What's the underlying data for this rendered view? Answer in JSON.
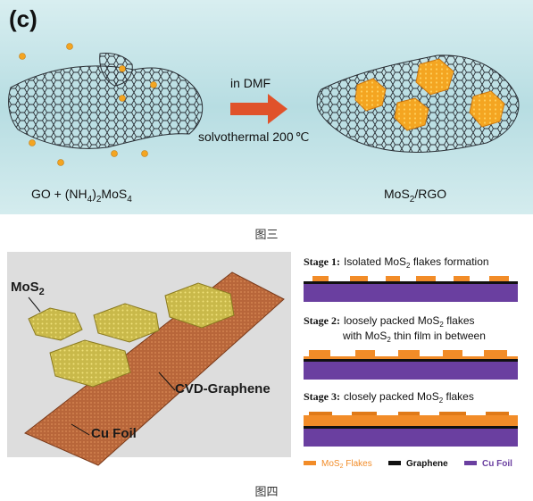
{
  "figure3": {
    "panel_label": "(c)",
    "arrow_top": "in DMF",
    "arrow_bottom": "solvothermal 200",
    "temperature_unit": "℃",
    "reactant_label": "GO + (NH",
    "reactant_sub1": "4",
    "reactant_mid": ")",
    "reactant_sub2": "2",
    "reactant_tail": "MoS",
    "reactant_sub3": "4",
    "product_label": "MoS",
    "product_sub": "2",
    "product_tail": "/RGO",
    "caption": "图三"
  },
  "figure4": {
    "left_labels": {
      "mos2": "MoS",
      "mos2_sub": "2",
      "graphene": "CVD-Graphene",
      "cu": "Cu Foil"
    },
    "stages": [
      {
        "title": "Stage 1:",
        "desc": "Isolated MoS",
        "desc_sub": "2",
        "desc_tail": " flakes formation",
        "desc2": ""
      },
      {
        "title": "Stage 2:",
        "desc": "loosely packed MoS",
        "desc_sub": "2",
        "desc_tail": " flakes",
        "desc2": "with MoS",
        "desc2_sub": "2",
        "desc2_tail": " thin film in between"
      },
      {
        "title": "Stage 3:",
        "desc": "closely packed MoS",
        "desc_sub": "2",
        "desc_tail": " flakes",
        "desc2": ""
      }
    ],
    "legend": [
      {
        "label": "MoS",
        "sub": "2",
        "tail": " Flakes",
        "color": "#f28c28"
      },
      {
        "label": "Graphene",
        "sub": "",
        "tail": "",
        "color": "#111111"
      },
      {
        "label": "Cu Foil",
        "sub": "",
        "tail": "",
        "color": "#6a3fa0"
      }
    ],
    "caption": "图四"
  },
  "colors": {
    "orange": "#f28c28",
    "purple": "#6a3fa0",
    "teal_bg": "#bfe0e4",
    "gold": "#f4a521",
    "arrow": "#e0522a"
  }
}
